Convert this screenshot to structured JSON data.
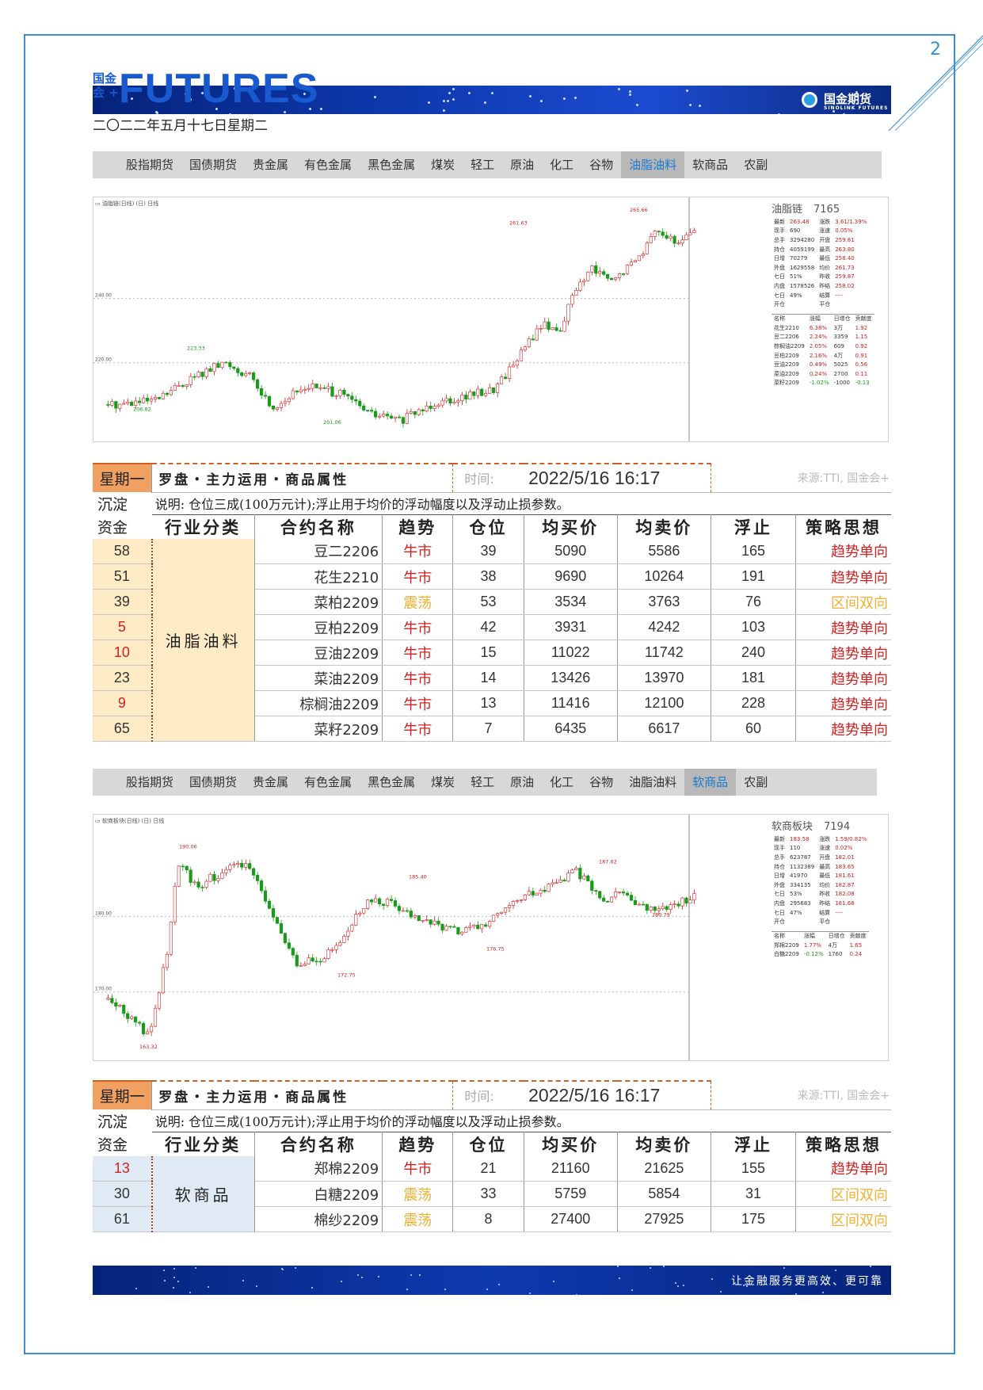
{
  "page_number": "2",
  "header": {
    "logo_small_1": "国金",
    "logo_small_2": "会 +",
    "logo_big": "FUTURES",
    "brand": "国金期货",
    "brand_sub": "SINOLINK FUTURES",
    "date": "二〇二二年五月十七日星期二"
  },
  "tabs_1": [
    "股指期货",
    "国债期货",
    "贵金属",
    "有色金属",
    "黑色金属",
    "煤炭",
    "轻工",
    "原油",
    "化工",
    "谷物",
    "油脂油料",
    "软商品",
    "农副"
  ],
  "tabs_1_active": "油脂油料",
  "tabs_2": [
    "股指期货",
    "国债期货",
    "贵金属",
    "有色金属",
    "黑色金属",
    "煤炭",
    "轻工",
    "原油",
    "化工",
    "谷物",
    "油脂油料",
    "软商品",
    "农副"
  ],
  "tabs_2_active": "软商品",
  "chart1_panel": {
    "title": "油脂链",
    "code": "7165",
    "rows": [
      [
        "最新",
        "263.48",
        "涨跌",
        "3.61/1.39%"
      ],
      [
        "现手",
        "690",
        "涨速",
        "0.05%"
      ],
      [
        "总手",
        "3294280",
        "开盘",
        "259.81"
      ],
      [
        "持仓",
        "4059199",
        "最高",
        "263.80"
      ],
      [
        "日增",
        "70279",
        "最低",
        "258.40"
      ],
      [
        "外盘",
        "1629558",
        "均价",
        "261.73"
      ],
      [
        "七日",
        "51%",
        "昨收",
        "259.87"
      ],
      [
        "内盘",
        "1578526",
        "昨结",
        "258.02"
      ],
      [
        "七日",
        "49%",
        "结算",
        "----"
      ],
      [
        "开仓",
        "",
        "平仓",
        ""
      ]
    ],
    "sub_header": [
      "名称",
      "涨幅",
      "日增仓",
      "贡献度"
    ],
    "sub_rows": [
      [
        "花生2210",
        "6.38%",
        "3万",
        "1.92"
      ],
      [
        "豆二2206",
        "2.24%",
        "3359",
        "1.15"
      ],
      [
        "棕榈油2209",
        "2.05%",
        "609",
        "0.92"
      ],
      [
        "豆柏2209",
        "2.16%",
        "4万",
        "0.91"
      ],
      [
        "豆油2209",
        "0.49%",
        "5025",
        "0.56"
      ],
      [
        "菜油2209",
        "0.24%",
        "2700",
        "0.11"
      ],
      [
        "菜籽2209",
        "-1.02%",
        "-1000",
        "-0.13"
      ]
    ]
  },
  "chart2_panel": {
    "title": "软商板块",
    "code": "7194",
    "rows": [
      [
        "最新",
        "183.58",
        "涨跌",
        "1.59/0.82%"
      ],
      [
        "现手",
        "110",
        "涨速",
        "0.02%"
      ],
      [
        "总手",
        "623787",
        "开盘",
        "182.01"
      ],
      [
        "持仓",
        "1132389",
        "最高",
        "183.65"
      ],
      [
        "日增",
        "41970",
        "最低",
        "181.61"
      ],
      [
        "外盘",
        "334135",
        "均价",
        "182.87"
      ],
      [
        "七日",
        "53%",
        "昨收",
        "182.08"
      ],
      [
        "内盘",
        "295683",
        "昨结",
        "181.68"
      ],
      [
        "七日",
        "47%",
        "结算",
        "----"
      ],
      [
        "开仓",
        "",
        "平仓",
        ""
      ]
    ],
    "sub_header": [
      "名称",
      "涨幅",
      "日增仓",
      "贡献度"
    ],
    "sub_rows": [
      [
        "郑棉2209",
        "1.77%",
        "4万",
        "1.65"
      ],
      [
        "白糖2209",
        "-0.12%",
        "1760",
        "0.24"
      ]
    ]
  },
  "chart_data": [
    {
      "type": "candlestick",
      "title": "油脂链",
      "y_ticks": [
        240.0,
        220.0
      ],
      "y_tick_labels": [
        "240.00",
        "220.00"
      ],
      "annotations": [
        "261.63",
        "265.66",
        "223.33",
        "206.82",
        "201.06"
      ],
      "ylim": [
        198,
        268
      ]
    },
    {
      "type": "candlestick",
      "title": "软商板块",
      "y_ticks": [
        180.0,
        170.0
      ],
      "y_tick_labels": [
        "180.00",
        "170.00"
      ],
      "annotations": [
        "190.06",
        "185.40",
        "187.62",
        "172.75",
        "176.75",
        "180.79",
        "163.32"
      ],
      "ylim": [
        162,
        192
      ]
    }
  ],
  "table1": {
    "day_label": "星期一",
    "bar_title": "罗盘・主力运用・商品属性",
    "time_label": "时间:",
    "time_value": "2022/5/16 16:17",
    "source": "来源:TTI, 国金会+",
    "left_labels": [
      "沉淀",
      "资金"
    ],
    "description": "说明: 仓位三成(100万元计);浮止用于均价的浮动幅度以及浮动止损参数。",
    "headers": [
      "行业分类",
      "合约名称",
      "趋势",
      "仓位",
      "均买价",
      "均卖价",
      "浮止",
      "策略思想"
    ],
    "category": "油脂油料",
    "rows": [
      {
        "fund": "58",
        "name": "豆二2206",
        "trend": "牛市",
        "pos": "39",
        "buy": "5090",
        "sell": "5586",
        "stop": "165",
        "strategy": "趋势单向"
      },
      {
        "fund": "51",
        "name": "花生2210",
        "trend": "牛市",
        "pos": "38",
        "buy": "9690",
        "sell": "10264",
        "stop": "191",
        "strategy": "趋势单向"
      },
      {
        "fund": "39",
        "name": "菜柏2209",
        "trend": "震荡",
        "pos": "53",
        "buy": "3534",
        "sell": "3763",
        "stop": "76",
        "strategy": "区间双向"
      },
      {
        "fund": "5",
        "name": "豆柏2209",
        "trend": "牛市",
        "pos": "42",
        "buy": "3931",
        "sell": "4242",
        "stop": "103",
        "strategy": "趋势单向"
      },
      {
        "fund": "10",
        "name": "豆油2209",
        "trend": "牛市",
        "pos": "15",
        "buy": "11022",
        "sell": "11742",
        "stop": "240",
        "strategy": "趋势单向"
      },
      {
        "fund": "23",
        "name": "菜油2209",
        "trend": "牛市",
        "pos": "14",
        "buy": "13426",
        "sell": "13970",
        "stop": "181",
        "strategy": "趋势单向"
      },
      {
        "fund": "9",
        "name": "棕榈油2209",
        "trend": "牛市",
        "pos": "13",
        "buy": "11416",
        "sell": "12100",
        "stop": "228",
        "strategy": "趋势单向"
      },
      {
        "fund": "65",
        "name": "菜籽2209",
        "trend": "牛市",
        "pos": "7",
        "buy": "6435",
        "sell": "6617",
        "stop": "60",
        "strategy": "趋势单向"
      }
    ]
  },
  "table2": {
    "day_label": "星期一",
    "bar_title": "罗盘・主力运用・商品属性",
    "time_label": "时间:",
    "time_value": "2022/5/16 16:17",
    "source": "来源:TTI, 国金会+",
    "left_labels": [
      "沉淀",
      "资金"
    ],
    "description": "说明: 仓位三成(100万元计);浮止用于均价的浮动幅度以及浮动止损参数。",
    "headers": [
      "行业分类",
      "合约名称",
      "趋势",
      "仓位",
      "均买价",
      "均卖价",
      "浮止",
      "策略思想"
    ],
    "category": "软商品",
    "rows": [
      {
        "fund": "13",
        "name": "郑棉2209",
        "trend": "牛市",
        "pos": "21",
        "buy": "21160",
        "sell": "21625",
        "stop": "155",
        "strategy": "趋势单向"
      },
      {
        "fund": "30",
        "name": "白糖2209",
        "trend": "震荡",
        "pos": "33",
        "buy": "5759",
        "sell": "5854",
        "stop": "31",
        "strategy": "区间双向"
      },
      {
        "fund": "61",
        "name": "棉纱2209",
        "trend": "震荡",
        "pos": "8",
        "buy": "27400",
        "sell": "27925",
        "stop": "175",
        "strategy": "区间双向"
      }
    ]
  },
  "footer": {
    "slogan": "让金融服务更高效、更可靠"
  },
  "colors": {
    "frame": "#3a8fd0",
    "up": "#d42020",
    "down": "#1a9a1a",
    "accent_orange": "#f0a060",
    "oscillate": "#f0b030"
  }
}
